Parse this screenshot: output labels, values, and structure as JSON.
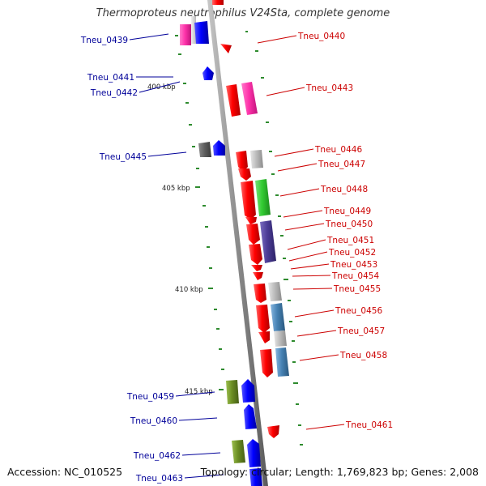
{
  "title": "Thermoproteus neutrophilus V24Sta, complete genome",
  "accession": "Accession: NC_010525",
  "summary": "Topology: circular; Length: 1,769,823 bp; Genes: 2,008",
  "colors": {
    "red": "#ff0000",
    "pink": "#ff33aa",
    "blue": "#0000ff",
    "gray": "#b4b4b4",
    "darkgray": "#606060",
    "green": "#33cc33",
    "purple": "#4b3c96",
    "steelblue": "#4682b4",
    "olive": "#6b8e23",
    "darkred_label": "#cc0000",
    "navy_label": "#000099"
  },
  "scale_labels": [
    "400 kbp",
    "405 kbp",
    "410 kbp",
    "415 kbp"
  ],
  "gene_labels_right": [
    "Tneu_0440",
    "Tneu_0443",
    "Tneu_0446",
    "Tneu_0447",
    "Tneu_0448",
    "Tneu_0449",
    "Tneu_0450",
    "Tneu_0451",
    "Tneu_0452",
    "Tneu_0453",
    "Tneu_0454",
    "Tneu_0455",
    "Tneu_0456",
    "Tneu_0457",
    "Tneu_0458",
    "Tneu_0461"
  ],
  "gene_labels_left": [
    "Tneu_0439",
    "Tneu_0441",
    "Tneu_0442",
    "Tneu_0445",
    "Tneu_0459",
    "Tneu_0460",
    "Tneu_0462",
    "Tneu_0463"
  ]
}
